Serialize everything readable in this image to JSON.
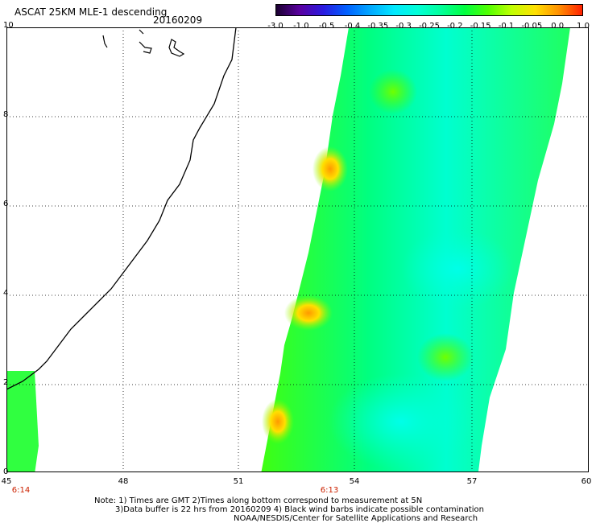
{
  "header": {
    "title": "ASCAT 25KM MLE-1 descending",
    "date": "20160209"
  },
  "colorbar": {
    "labels": [
      "-3.0",
      "-1.0",
      "-0.5",
      "-0.4",
      "-0.35",
      "-0.3",
      "-0.25",
      "-0.2",
      "-0.15",
      "-0.1",
      "-0.05",
      "0.0",
      "1.0"
    ],
    "colors": [
      "#1a0030",
      "#5a00a0",
      "#2a1ae0",
      "#0060ff",
      "#00a8ff",
      "#00e8ff",
      "#00ffd8",
      "#00ff9a",
      "#00ff40",
      "#50ff00",
      "#c0ff00",
      "#ffe000",
      "#ff9000",
      "#ff2000"
    ]
  },
  "axes": {
    "x_labels": [
      "45",
      "48",
      "51",
      "54",
      "57",
      "60"
    ],
    "y_labels": [
      "0",
      "2",
      "4",
      "6",
      "8",
      "10"
    ],
    "times": {
      "left": "6:14",
      "swath": "6:13"
    }
  },
  "notes": {
    "line1": "Note: 1) Times are GMT 2)Times along bottom correspond to measurement at 5N",
    "line2": "3)Data buffer is 22 hrs from 20160209 4) Black wind barbs indicate possible contamination",
    "line3": "NOAA/NESDIS/Center for Satellite Applications and Research"
  }
}
